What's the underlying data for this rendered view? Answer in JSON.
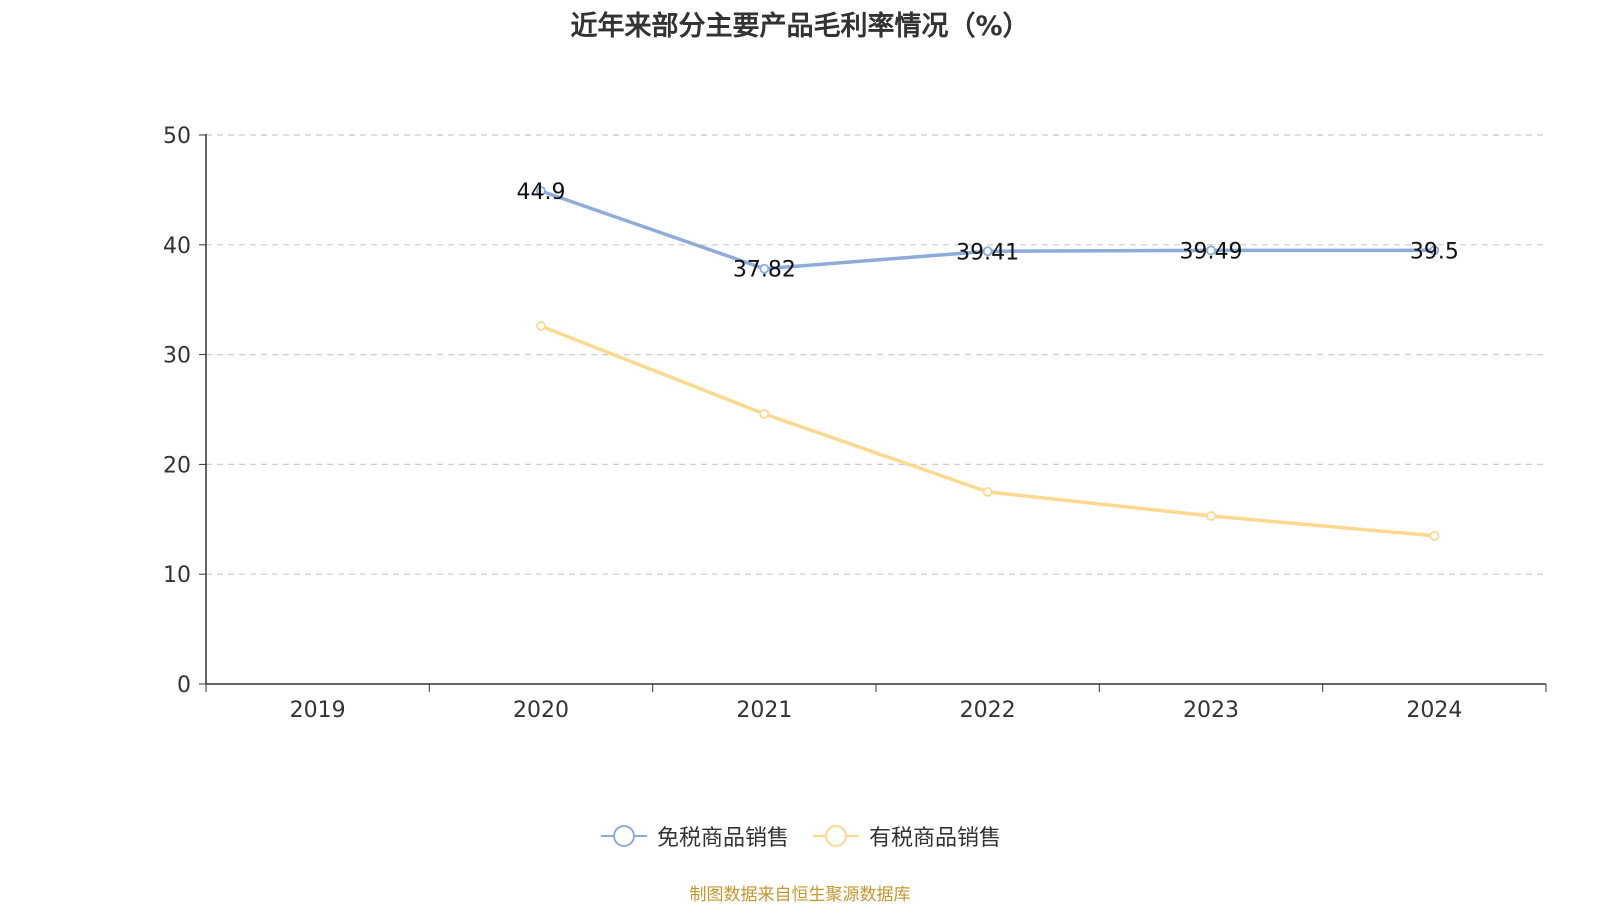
{
  "title": "近年来部分主要产品毛利率情况（%）",
  "source": "制图数据来自恒生聚源数据库",
  "chart_data": {
    "type": "line",
    "categories": [
      "2019",
      "2020",
      "2021",
      "2022",
      "2023",
      "2024"
    ],
    "ylim": [
      0,
      50
    ],
    "yticks": [
      0,
      10,
      20,
      30,
      40,
      50
    ],
    "grid": true,
    "legend_position": "bottom",
    "series": [
      {
        "name": "免税商品销售",
        "color": "#8eacd9",
        "values": [
          null,
          44.9,
          37.82,
          39.41,
          39.49,
          39.5
        ],
        "labels": [
          "",
          "44.9",
          "37.82",
          "39.41",
          "39.49",
          "39.5"
        ]
      },
      {
        "name": "有税商品销售",
        "color": "#fbd98f",
        "values": [
          null,
          32.6,
          24.6,
          17.5,
          15.3,
          13.5
        ]
      }
    ]
  }
}
